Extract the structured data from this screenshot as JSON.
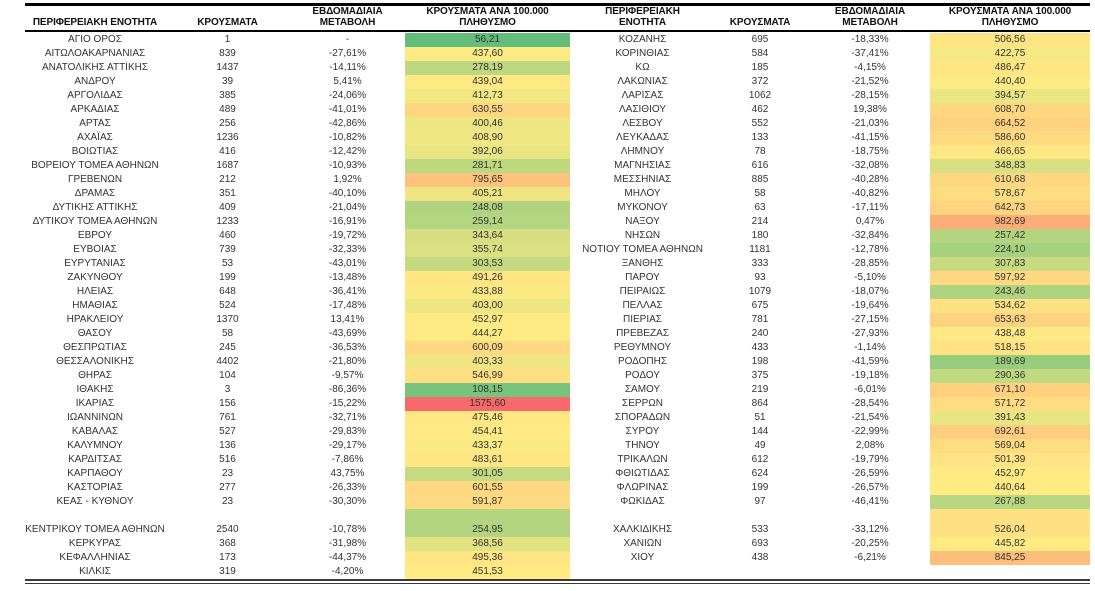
{
  "page": {
    "background": "#ffffff",
    "description_visible_text_only": true
  },
  "color_scale": {
    "type": "3-color",
    "min": 56.21,
    "mid": 444.27,
    "max": 1575.6,
    "min_color": "#63BE7B",
    "mid_color": "#FFEB84",
    "max_color": "#F8696B"
  },
  "row_format": [
    "region",
    "cases",
    "weekly_change",
    "rate_per_100k",
    "blank_row_fill_color"
  ],
  "chart_data": [
    {
      "type": "table",
      "columns": [
        "ΠΕΡΙΦΕΡΕΙΑΚΗ ΕΝΟΤΗΤΑ",
        "ΚΡΟΥΣΜΑΤΑ",
        "ΕΒΔΟΜΑΔΙΑΙΑ ΜΕΤΑΒΟΛΗ",
        "ΚΡΟΥΣΜΑΤΑ ΑΝΑ 100.000 ΠΛΗΘΥΣΜΟ"
      ],
      "rows": [
        [
          "ΑΓΙΟ ΟΡΟΣ",
          "1",
          "-",
          "56,21"
        ],
        [
          "ΑΙΤΩΛΟΑΚΑΡΝΑΝΙΑΣ",
          "839",
          "-27,61%",
          "437,60"
        ],
        [
          "ΑΝΑΤΟΛΙΚΗΣ ΑΤΤΙΚΗΣ",
          "1437",
          "-14,11%",
          "278,19"
        ],
        [
          "ΑΝΔΡΟΥ",
          "39",
          "5,41%",
          "439,04"
        ],
        [
          "ΑΡΓΟΛΙΔΑΣ",
          "385",
          "-24,06%",
          "412,73"
        ],
        [
          "ΑΡΚΑΔΙΑΣ",
          "489",
          "-41,01%",
          "630,55"
        ],
        [
          "ΑΡΤΑΣ",
          "256",
          "-42,86%",
          "400,46"
        ],
        [
          "ΑΧΑΪΑΣ",
          "1236",
          "-10,82%",
          "408,90"
        ],
        [
          "ΒΟΙΩΤΙΑΣ",
          "416",
          "-12,42%",
          "392,06"
        ],
        [
          "ΒΟΡΕΙΟΥ ΤΟΜΕΑ ΑΘΗΝΩΝ",
          "1687",
          "-10,93%",
          "281,71"
        ],
        [
          "ΓΡΕΒΕΝΩΝ",
          "212",
          "1,92%",
          "795,65"
        ],
        [
          "ΔΡΑΜΑΣ",
          "351",
          "-40,10%",
          "405,21"
        ],
        [
          "ΔΥΤΙΚΗΣ ΑΤΤΙΚΗΣ",
          "409",
          "-21,04%",
          "248,08"
        ],
        [
          "ΔΥΤΙΚΟΥ ΤΟΜΕΑ ΑΘΗΝΩΝ",
          "1233",
          "-16,91%",
          "259,14"
        ],
        [
          "ΕΒΡΟΥ",
          "460",
          "-19,72%",
          "343,64"
        ],
        [
          "ΕΥΒΟΙΑΣ",
          "739",
          "-32,33%",
          "355,74"
        ],
        [
          "ΕΥΡΥΤΑΝΙΑΣ",
          "53",
          "-43,01%",
          "303,53"
        ],
        [
          "ΖΑΚΥΝΘΟΥ",
          "199",
          "-13,48%",
          "491,26"
        ],
        [
          "ΗΛΕΙΑΣ",
          "648",
          "-36,41%",
          "433,88"
        ],
        [
          "ΗΜΑΘΙΑΣ",
          "524",
          "-17,48%",
          "403,00"
        ],
        [
          "ΗΡΑΚΛΕΙΟΥ",
          "1370",
          "13,41%",
          "452,97"
        ],
        [
          "ΘΑΣΟΥ",
          "58",
          "-43,69%",
          "444,27"
        ],
        [
          "ΘΕΣΠΡΩΤΙΑΣ",
          "245",
          "-36,53%",
          "600,09"
        ],
        [
          "ΘΕΣΣΑΛΟΝΙΚΗΣ",
          "4402",
          "-21,80%",
          "403,33"
        ],
        [
          "ΘΗΡΑΣ",
          "104",
          "-9,57%",
          "546,99"
        ],
        [
          "ΙΘΑΚΗΣ",
          "3",
          "-86,36%",
          "108,15"
        ],
        [
          "ΙΚΑΡΙΑΣ",
          "156",
          "-15,22%",
          "1575,60"
        ],
        [
          "ΙΩΑΝΝΙΝΩΝ",
          "761",
          "-32,71%",
          "475,46"
        ],
        [
          "ΚΑΒΑΛΑΣ",
          "527",
          "-29,83%",
          "454,41"
        ],
        [
          "ΚΑΛΥΜΝΟΥ",
          "136",
          "-29,17%",
          "433,37"
        ],
        [
          "ΚΑΡΔΙΤΣΑΣ",
          "516",
          "-7,86%",
          "483,61"
        ],
        [
          "ΚΑΡΠΑΘΟΥ",
          "23",
          "43,75%",
          "301,05"
        ],
        [
          "ΚΑΣΤΟΡΙΑΣ",
          "277",
          "-26,33%",
          "601,55"
        ],
        [
          "ΚΕΑΣ - ΚΥΘΝΟΥ",
          "23",
          "-30,30%",
          "591,87"
        ],
        [
          "",
          "",
          "",
          "",
          "#B3D580"
        ],
        [
          "ΚΕΝΤΡΙΚΟΥ ΤΟΜΕΑ ΑΘΗΝΩΝ",
          "2540",
          "-10,78%",
          "254,95"
        ],
        [
          "ΚΕΡΚΥΡΑΣ",
          "368",
          "-31,98%",
          "368,56"
        ],
        [
          "ΚΕΦΑΛΛΗΝΙΑΣ",
          "173",
          "-44,37%",
          "495,36"
        ],
        [
          "ΚΙΛΚΙΣ",
          "319",
          "-4,20%",
          "451,53"
        ]
      ]
    },
    {
      "type": "table",
      "columns": [
        "ΠΕΡΙΦΕΡΕΙΑΚΗ ΕΝΟΤΗΤΑ",
        "ΚΡΟΥΣΜΑΤΑ",
        "ΕΒΔΟΜΑΔΙΑΙΑ ΜΕΤΑΒΟΛΗ",
        "ΚΡΟΥΣΜΑΤΑ ΑΝΑ 100.000 ΠΛΗΘΥΣΜΟ"
      ],
      "rows": [
        [
          "ΚΟΖΑΝΗΣ",
          "695",
          "-18,33%",
          "506,56"
        ],
        [
          "ΚΟΡΙΝΘΙΑΣ",
          "584",
          "-37,41%",
          "422,75"
        ],
        [
          "ΚΩ",
          "185",
          "-4,15%",
          "486,47"
        ],
        [
          "ΛΑΚΩΝΙΑΣ",
          "372",
          "-21,52%",
          "440,40"
        ],
        [
          "ΛΑΡΙΣΑΣ",
          "1062",
          "-28,15%",
          "394,57"
        ],
        [
          "ΛΑΣΙΘΙΟΥ",
          "462",
          "19,38%",
          "608,70"
        ],
        [
          "ΛΕΣΒΟΥ",
          "552",
          "-21,03%",
          "664,52"
        ],
        [
          "ΛΕΥΚΑΔΑΣ",
          "133",
          "-41,15%",
          "586,60"
        ],
        [
          "ΛΗΜΝΟΥ",
          "78",
          "-18,75%",
          "466,65"
        ],
        [
          "ΜΑΓΝΗΣΙΑΣ",
          "616",
          "-32,08%",
          "348,83"
        ],
        [
          "ΜΕΣΣΗΝΙΑΣ",
          "885",
          "-40,28%",
          "610,68"
        ],
        [
          "ΜΗΛΟΥ",
          "58",
          "-40,82%",
          "578,67"
        ],
        [
          "ΜΥΚΟΝΟΥ",
          "63",
          "-17,11%",
          "642,73"
        ],
        [
          "ΝΑΞΟΥ",
          "214",
          "0,47%",
          "982,69"
        ],
        [
          "ΝΗΣΩΝ",
          "180",
          "-32,84%",
          "257,42"
        ],
        [
          "ΝΟΤΙΟΥ ΤΟΜΕΑ ΑΘΗΝΩΝ",
          "1181",
          "-12,78%",
          "224,10"
        ],
        [
          "ΞΑΝΘΗΣ",
          "333",
          "-28,85%",
          "307,83"
        ],
        [
          "ΠΑΡΟΥ",
          "93",
          "-5,10%",
          "597,92"
        ],
        [
          "ΠΕΙΡΑΙΩΣ",
          "1079",
          "-18,07%",
          "243,46"
        ],
        [
          "ΠΕΛΛΑΣ",
          "675",
          "-19,64%",
          "534,62"
        ],
        [
          "ΠΙΕΡΙΑΣ",
          "781",
          "-27,15%",
          "653,63"
        ],
        [
          "ΠΡΕΒΕΖΑΣ",
          "240",
          "-27,93%",
          "438,48"
        ],
        [
          "ΡΕΘΥΜΝΟΥ",
          "433",
          "-1,14%",
          "518,15"
        ],
        [
          "ΡΟΔΟΠΗΣ",
          "198",
          "-41,59%",
          "189,69"
        ],
        [
          "ΡΟΔΟΥ",
          "375",
          "-19,18%",
          "290,36"
        ],
        [
          "ΣΑΜΟΥ",
          "219",
          "-6,01%",
          "671,10"
        ],
        [
          "ΣΕΡΡΩΝ",
          "864",
          "-28,54%",
          "571,72"
        ],
        [
          "ΣΠΟΡΑΔΩΝ",
          "51",
          "-21,54%",
          "391,43"
        ],
        [
          "ΣΥΡΟΥ",
          "144",
          "-22,99%",
          "692,61"
        ],
        [
          "ΤΗΝΟΥ",
          "49",
          "2,08%",
          "569,04"
        ],
        [
          "ΤΡΙΚΑΛΩΝ",
          "612",
          "-19,79%",
          "501,39"
        ],
        [
          "ΦΘΙΩΤΙΔΑΣ",
          "624",
          "-26,59%",
          "452,97"
        ],
        [
          "ΦΛΩΡΙΝΑΣ",
          "199",
          "-26,57%",
          "440,64"
        ],
        [
          "ΦΩΚΙΔΑΣ",
          "97",
          "-46,41%",
          "267,88"
        ],
        [
          "",
          "",
          "",
          "",
          "#FEE282"
        ],
        [
          "ΧΑΛΚΙΔΙΚΗΣ",
          "533",
          "-33,12%",
          "526,04"
        ],
        [
          "ΧΑΝΙΩΝ",
          "693",
          "-20,25%",
          "445,82"
        ],
        [
          "ΧΙΟΥ",
          "438",
          "-6,21%",
          "845,25"
        ],
        [
          "",
          "",
          "",
          "",
          ""
        ]
      ]
    }
  ]
}
